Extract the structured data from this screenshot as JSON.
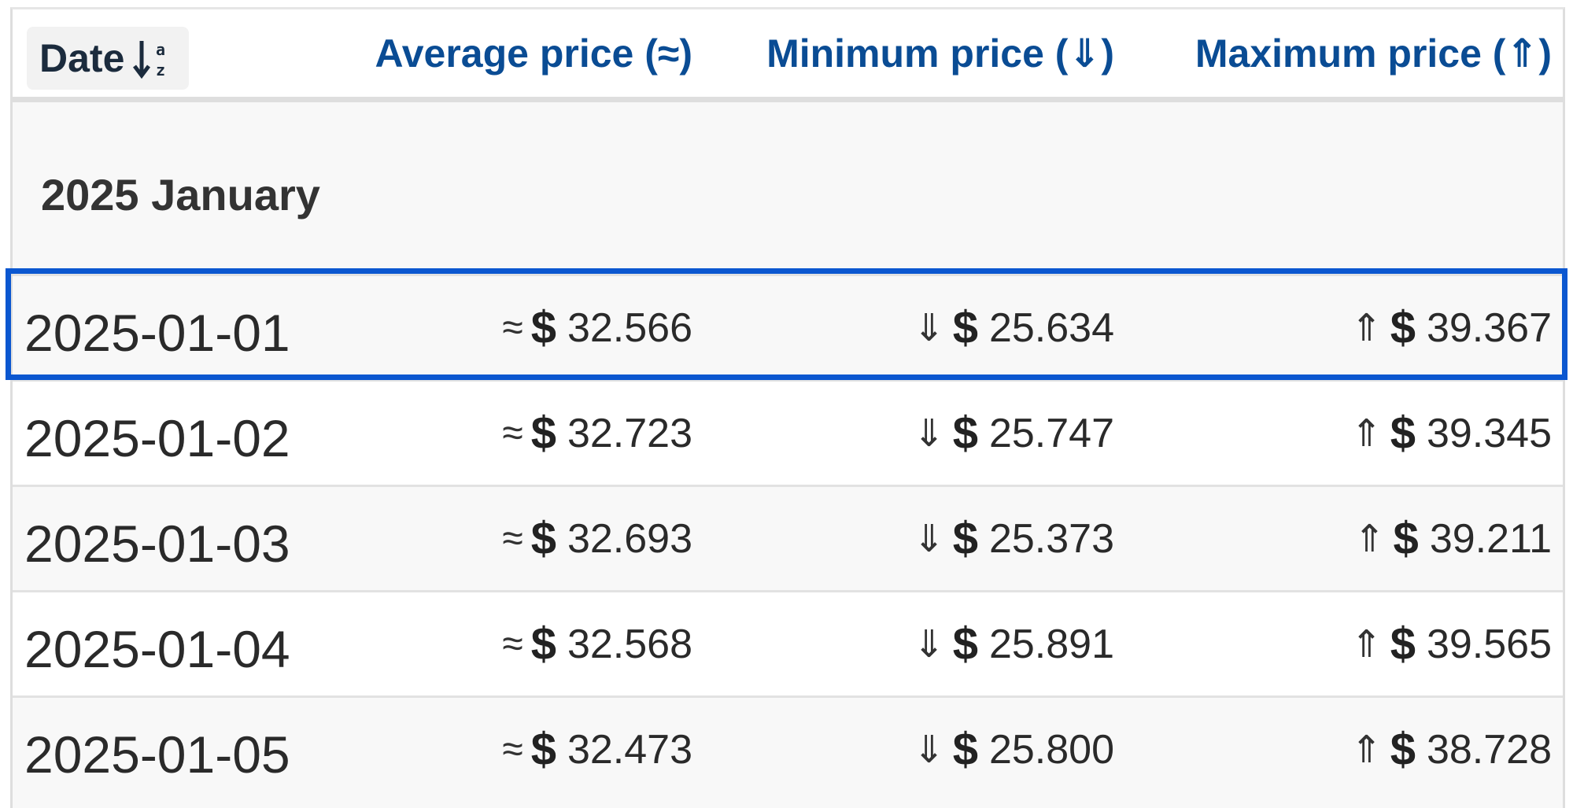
{
  "header": {
    "date_label": "Date",
    "average_label": "Average price (≈)",
    "minimum_label": "Minimum price (⇓)",
    "maximum_label": "Maximum price (⇑)"
  },
  "month_group": {
    "label": "2025 January"
  },
  "symbols": {
    "approx": "≈",
    "down": "⇓",
    "up": "⇑",
    "currency": "$"
  },
  "rows": [
    {
      "date": "2025-01-01",
      "avg": "32.566",
      "min": "25.634",
      "max": "39.367",
      "selected": true
    },
    {
      "date": "2025-01-02",
      "avg": "32.723",
      "min": "25.747",
      "max": "39.345",
      "selected": false
    },
    {
      "date": "2025-01-03",
      "avg": "32.693",
      "min": "25.373",
      "max": "39.211",
      "selected": false
    },
    {
      "date": "2025-01-04",
      "avg": "32.568",
      "min": "25.891",
      "max": "39.565",
      "selected": false
    },
    {
      "date": "2025-01-05",
      "avg": "32.473",
      "min": "25.800",
      "max": "38.728",
      "selected": false
    }
  ],
  "colors": {
    "header_text": "#0a4c94",
    "selection_outline": "#0b57d0"
  }
}
